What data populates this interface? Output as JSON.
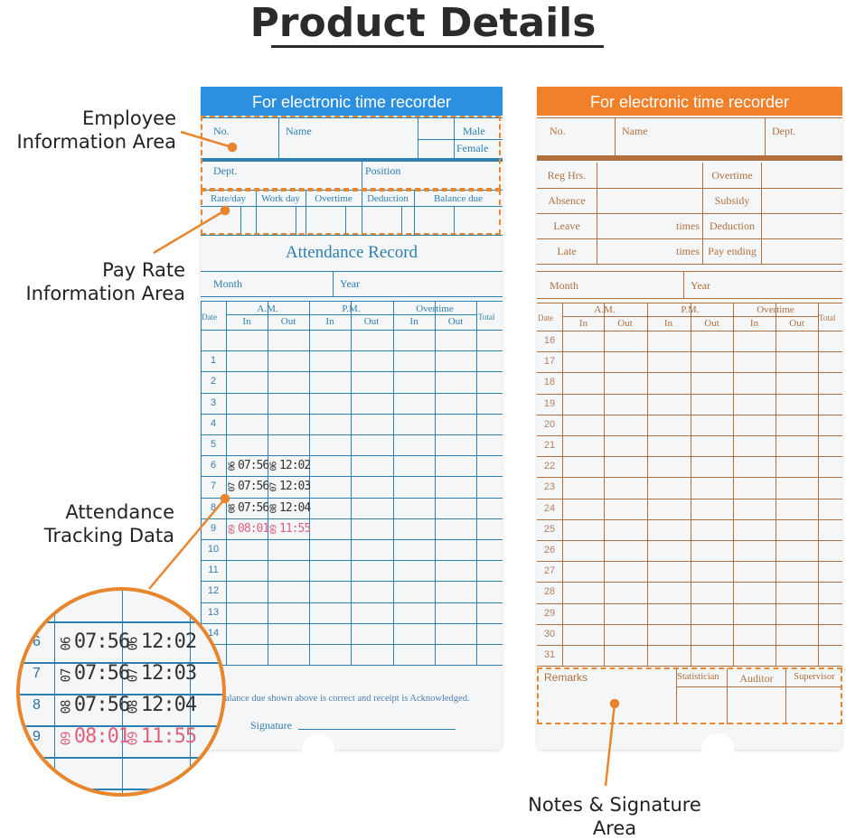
{
  "title": "Product Details",
  "colors": {
    "blue": "#2d8fe0",
    "orange": "#f0802a",
    "annotation": "#e8862e"
  },
  "annotations": {
    "employee": "Employee\nInformation Area",
    "pay_rate": "Pay Rate\nInformation Area",
    "attendance": "Attendance\nTracking Data",
    "notes": "Notes & Signature\nArea"
  },
  "blue_card": {
    "header": "For electronic time recorder",
    "no": "No.",
    "name": "Name",
    "male": "Male",
    "female": "Female",
    "dept": "Dept.",
    "position": "Position",
    "pay_cols": [
      "Rate/day",
      "Work day",
      "Overtime",
      "Deduction",
      "Balance due"
    ],
    "record_title": "Attendance  Record",
    "month": "Month",
    "year": "Year",
    "date": "Date",
    "am": "A.M.",
    "pm": "P.M.",
    "overtime": "Overtime",
    "total": "Total",
    "in": "In",
    "out": "Out",
    "rows": [
      "",
      "1",
      "2",
      "3",
      "4",
      "5",
      "6",
      "7",
      "8",
      "9",
      "10",
      "11",
      "12",
      "13",
      "14",
      ""
    ],
    "stamps": [
      {
        "day": "6",
        "in_pre": "06",
        "in": "07:56",
        "out_pre": "06",
        "out": "12:02",
        "color": "#333333"
      },
      {
        "day": "7",
        "in_pre": "07",
        "in": "07:56",
        "out_pre": "07",
        "out": "12:03",
        "color": "#333333"
      },
      {
        "day": "8",
        "in_pre": "08",
        "in": "07:56",
        "out_pre": "08",
        "out": "12:04",
        "color": "#333333"
      },
      {
        "day": "9",
        "in_pre": "09",
        "in": "08:01",
        "out_pre": "09",
        "out": "11:55",
        "color": "#e0607a"
      }
    ],
    "ack": "Balance due shown above is correct and receipt is Acknowledged.",
    "signature": "Signature"
  },
  "orange_card": {
    "header": "For electronic time recorder",
    "no": "No.",
    "name": "Name",
    "dept": "Dept.",
    "summary": [
      [
        "Reg Hrs.",
        "",
        "Overtime"
      ],
      [
        "Absence",
        "",
        "Subsidy"
      ],
      [
        "Leave",
        "times",
        "Deduction"
      ],
      [
        "Late",
        "times",
        "Pay ending"
      ]
    ],
    "month": "Month",
    "year": "Year",
    "date": "Date",
    "am": "A.M.",
    "pm": "P.M.",
    "overtime": "Overtime",
    "total": "Total",
    "in": "In",
    "out": "Out",
    "rows": [
      "16",
      "17",
      "18",
      "19",
      "20",
      "21",
      "22",
      "23",
      "24",
      "25",
      "26",
      "27",
      "28",
      "29",
      "30",
      "31"
    ],
    "remarks": "Remarks",
    "statistician": "Statistician",
    "auditor": "Auditor",
    "supervisor": "Supervisor"
  }
}
